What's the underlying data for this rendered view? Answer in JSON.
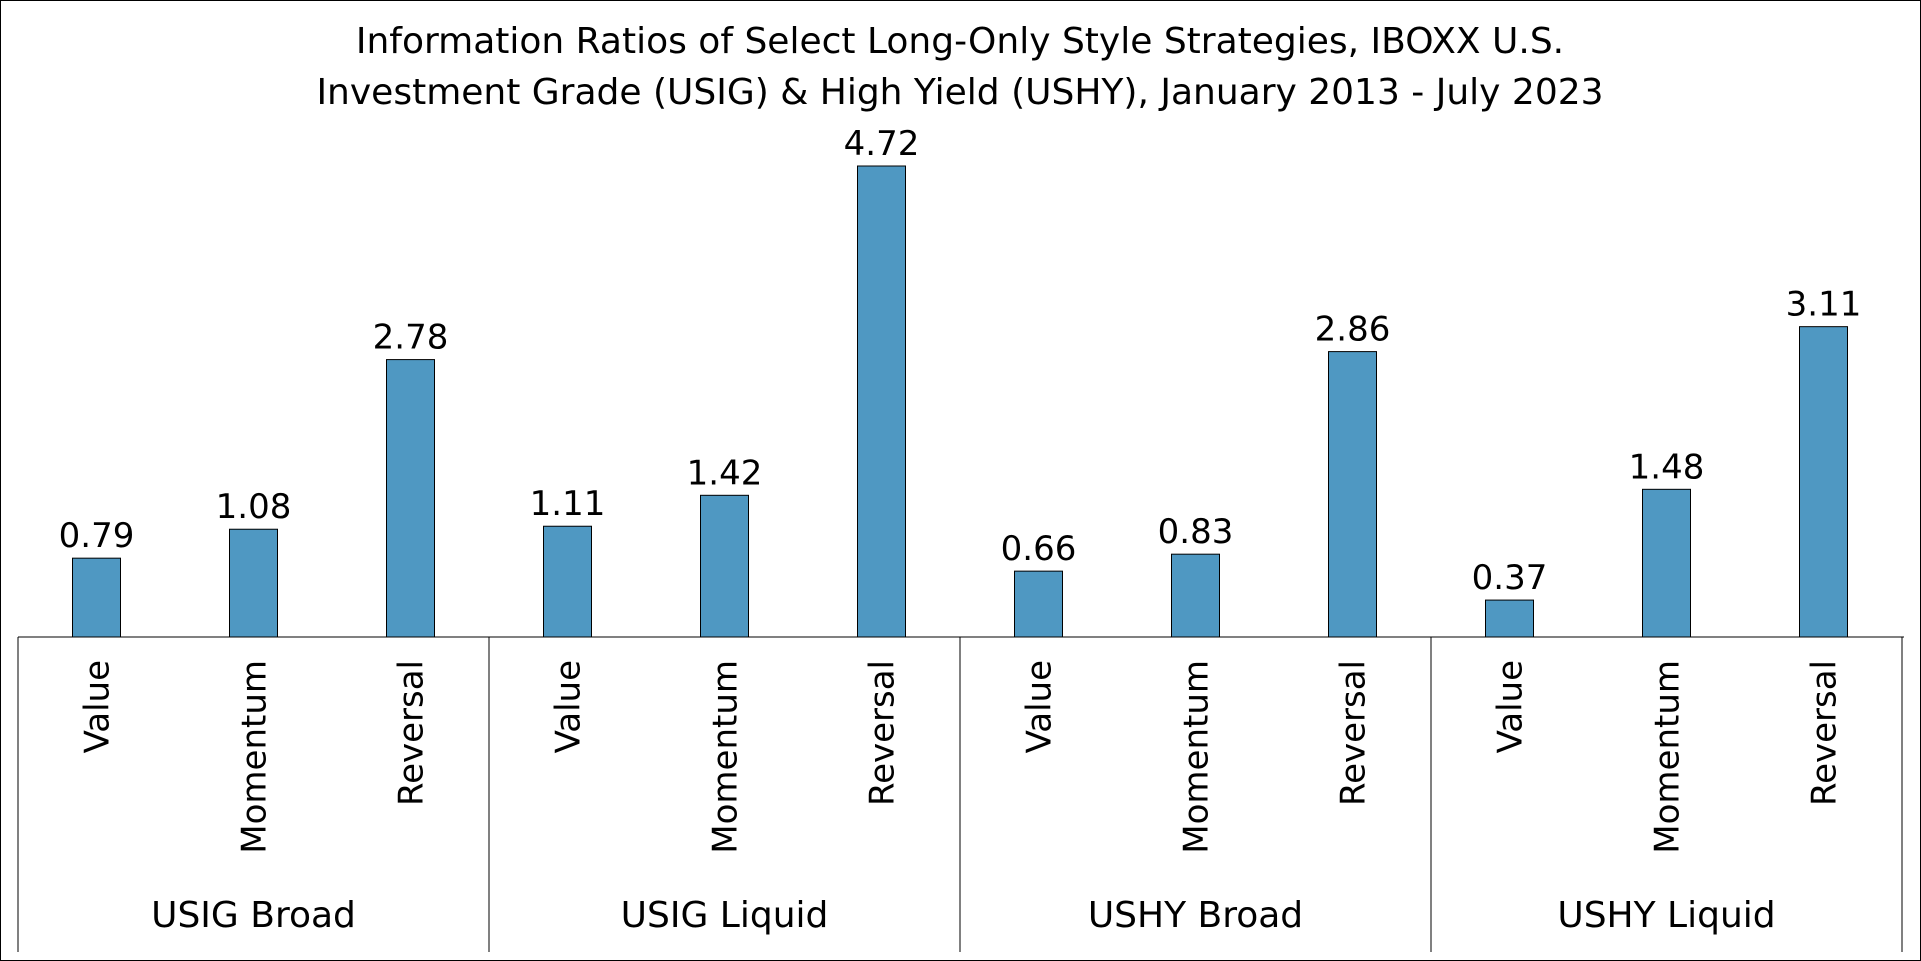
{
  "chart_data": {
    "type": "bar",
    "title_lines": [
      "Information Ratios of Select Long-Only Style Strategies, IBOXX U.S.",
      "Investment Grade (USIG) & High Yield (USHY), January 2013 - July 2023"
    ],
    "groups": [
      {
        "name": "USIG Broad",
        "categories": [
          "Value",
          "Momentum",
          "Reversal"
        ],
        "values": [
          0.79,
          1.08,
          2.78
        ],
        "labels": [
          "0.79",
          "1.08",
          "2.78"
        ]
      },
      {
        "name": "USIG Liquid",
        "categories": [
          "Value",
          "Momentum",
          "Reversal"
        ],
        "values": [
          1.11,
          1.42,
          4.72
        ],
        "labels": [
          "1.11",
          "1.42",
          "4.72"
        ]
      },
      {
        "name": "USHY Broad",
        "categories": [
          "Value",
          "Momentum",
          "Reversal"
        ],
        "values": [
          0.66,
          0.83,
          2.86
        ],
        "labels": [
          "0.66",
          "0.83",
          "2.86"
        ]
      },
      {
        "name": "USHY Liquid",
        "categories": [
          "Value",
          "Momentum",
          "Reversal"
        ],
        "values": [
          0.37,
          1.48,
          3.11
        ],
        "labels": [
          "0.37",
          "1.48",
          "3.11"
        ]
      }
    ],
    "ylim": [
      0,
      4.72
    ],
    "grid": false,
    "legend": "none",
    "bar_color": "#4f98c2",
    "bar_edge_color": "#000000"
  }
}
